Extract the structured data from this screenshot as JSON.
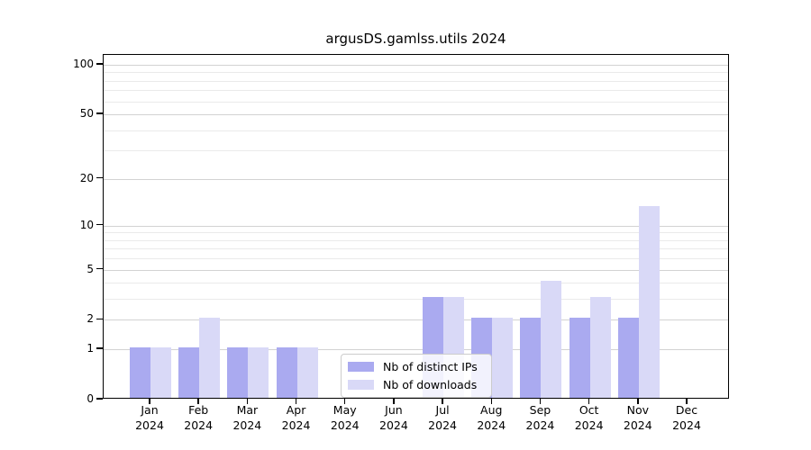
{
  "title": "argusDS.gamlss.utils 2024",
  "chart_data": {
    "type": "bar",
    "title": "argusDS.gamlss.utils 2024",
    "categories": [
      "Jan 2024",
      "Feb 2024",
      "Mar 2024",
      "Apr 2024",
      "May 2024",
      "Jun 2024",
      "Jul 2024",
      "Aug 2024",
      "Sep 2024",
      "Oct 2024",
      "Nov 2024",
      "Dec 2024"
    ],
    "series": [
      {
        "name": "Nb of distinct IPs",
        "color": "#aaaaf0",
        "values": [
          1,
          1,
          1,
          1,
          0,
          0,
          3,
          2,
          2,
          2,
          2,
          0
        ]
      },
      {
        "name": "Nb of downloads",
        "color": "#d9d9f7",
        "values": [
          1,
          2,
          1,
          1,
          0,
          0,
          3,
          2,
          4,
          3,
          13,
          0
        ]
      }
    ],
    "xlabel": "",
    "ylabel": "",
    "y_axis": {
      "scale": "log1p",
      "major_ticks": [
        0,
        1,
        2,
        5,
        10,
        20,
        50,
        100
      ],
      "minor_ticks": [
        3,
        4,
        6,
        7,
        8,
        9,
        30,
        40,
        60,
        70,
        80,
        90
      ],
      "ylim": [
        0,
        115
      ]
    },
    "grid": "on",
    "legend_position": "lower-center-inside",
    "colors": {
      "major_grid": "#d2d2d2",
      "minor_grid": "#eaeaea",
      "axis": "#000000",
      "background": "#ffffff"
    }
  }
}
